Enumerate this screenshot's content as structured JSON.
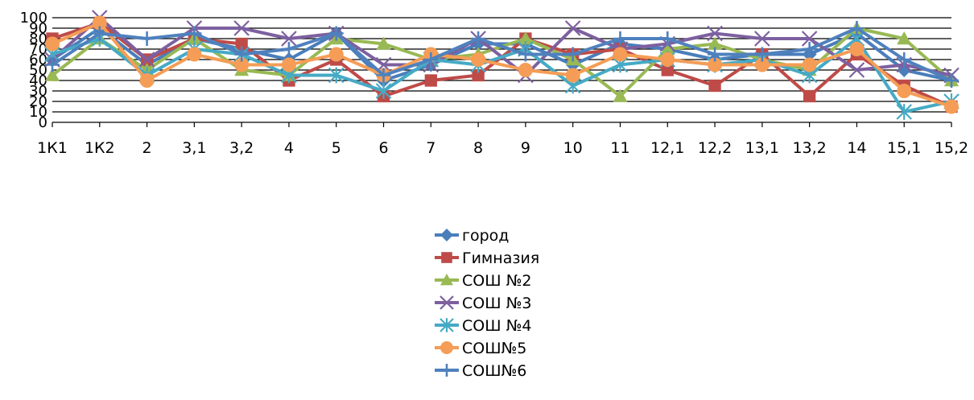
{
  "chart_data": {
    "type": "line",
    "categories": [
      "1К1",
      "1К2",
      "2",
      "3,1",
      "3,2",
      "4",
      "5",
      "6",
      "7",
      "8",
      "9",
      "10",
      "11",
      "12,1",
      "12,2",
      "13,1",
      "13,2",
      "14",
      "15,1",
      "15,2"
    ],
    "ylim": [
      0,
      100
    ],
    "yticks": [
      0,
      10,
      20,
      30,
      40,
      50,
      60,
      70,
      80,
      90,
      100
    ],
    "grid": true,
    "legend_position": "bottom",
    "series": [
      {
        "name": "город",
        "color": "#4a7ebb",
        "marker": "diamond",
        "values": [
          60,
          90,
          55,
          80,
          70,
          60,
          85,
          40,
          55,
          75,
          75,
          55,
          75,
          70,
          60,
          65,
          65,
          85,
          50,
          40
        ]
      },
      {
        "name": "Гимназия",
        "color": "#be4b48",
        "marker": "square",
        "values": [
          80,
          95,
          60,
          80,
          75,
          40,
          60,
          25,
          40,
          45,
          80,
          65,
          70,
          50,
          35,
          65,
          25,
          65,
          35,
          15
        ]
      },
      {
        "name": "СОШ №2",
        "color": "#98b954",
        "marker": "triangle",
        "values": [
          45,
          80,
          50,
          80,
          50,
          45,
          80,
          75,
          60,
          65,
          80,
          60,
          25,
          70,
          75,
          60,
          50,
          90,
          80,
          40
        ]
      },
      {
        "name": "СОШ №3",
        "color": "#7d60a0",
        "marker": "x",
        "values": [
          60,
          100,
          60,
          90,
          90,
          80,
          85,
          55,
          55,
          80,
          45,
          90,
          70,
          75,
          85,
          80,
          80,
          50,
          55,
          45
        ]
      },
      {
        "name": "СОШ №4",
        "color": "#46aac5",
        "marker": "star",
        "values": [
          65,
          80,
          45,
          70,
          65,
          45,
          45,
          30,
          60,
          55,
          70,
          35,
          55,
          60,
          55,
          60,
          45,
          80,
          10,
          20
        ]
      },
      {
        "name": "СОШ№5",
        "color": "#f59d56",
        "marker": "circle",
        "values": [
          75,
          95,
          40,
          65,
          55,
          55,
          65,
          45,
          65,
          60,
          50,
          45,
          65,
          60,
          55,
          55,
          55,
          70,
          30,
          15
        ]
      },
      {
        "name": "СОШ№6",
        "color": "#4f81bd",
        "marker": "plus",
        "values": [
          55,
          85,
          80,
          85,
          65,
          70,
          85,
          45,
          60,
          80,
          65,
          65,
          80,
          80,
          65,
          65,
          70,
          90,
          60,
          40
        ]
      }
    ]
  }
}
